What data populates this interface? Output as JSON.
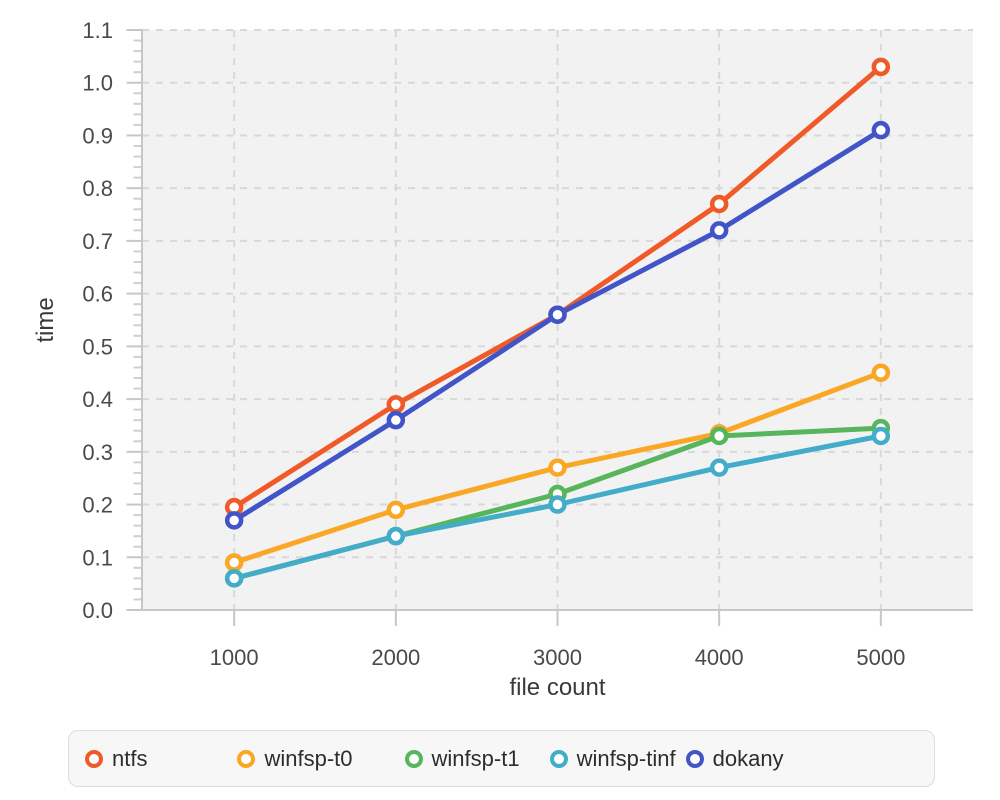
{
  "chart_data": {
    "type": "line",
    "title": "",
    "xlabel": "file count",
    "ylabel": "time",
    "x": [
      1000,
      2000,
      3000,
      4000,
      5000
    ],
    "x_tick_labels": [
      "1000",
      "2000",
      "3000",
      "4000",
      "5000"
    ],
    "y_tick_labels": [
      "0.0",
      "0.1",
      "0.2",
      "0.3",
      "0.4",
      "0.5",
      "0.6",
      "0.7",
      "0.8",
      "0.9",
      "1.0",
      "1.1"
    ],
    "xlim": [
      430,
      5570
    ],
    "ylim": [
      0,
      1.1
    ],
    "y_major_step": 0.1,
    "y_minor_step": 0.02,
    "x_major_step": 1000,
    "grid": "dashed",
    "legend_position": "bottom",
    "series": [
      {
        "name": "ntfs",
        "color": "#F05A28",
        "values": [
          0.195,
          0.39,
          0.56,
          0.77,
          1.03
        ]
      },
      {
        "name": "winfsp-t0",
        "color": "#FAA725",
        "values": [
          0.09,
          0.19,
          0.27,
          0.335,
          0.45
        ]
      },
      {
        "name": "winfsp-t1",
        "color": "#57B55C",
        "values": [
          0.06,
          0.14,
          0.22,
          0.33,
          0.345
        ]
      },
      {
        "name": "winfsp-tinf",
        "color": "#42ACC9",
        "values": [
          0.06,
          0.14,
          0.2,
          0.27,
          0.33
        ]
      },
      {
        "name": "dokany",
        "color": "#4155C8",
        "values": [
          0.17,
          0.36,
          0.56,
          0.72,
          0.91
        ]
      }
    ]
  },
  "styles": {
    "plot_bg": "#F2F2F2",
    "grid_color": "#D8D8D8",
    "axis_color": "#C7C7C7",
    "tick_label_color": "#4A4A4A",
    "axis_title_color": "#3A3A3A",
    "legend_bg": "#F7F7F7",
    "legend_border": "#DDDDDD",
    "legend_text": "#2D2D2D",
    "marker_fill": "#FFFFFF"
  }
}
